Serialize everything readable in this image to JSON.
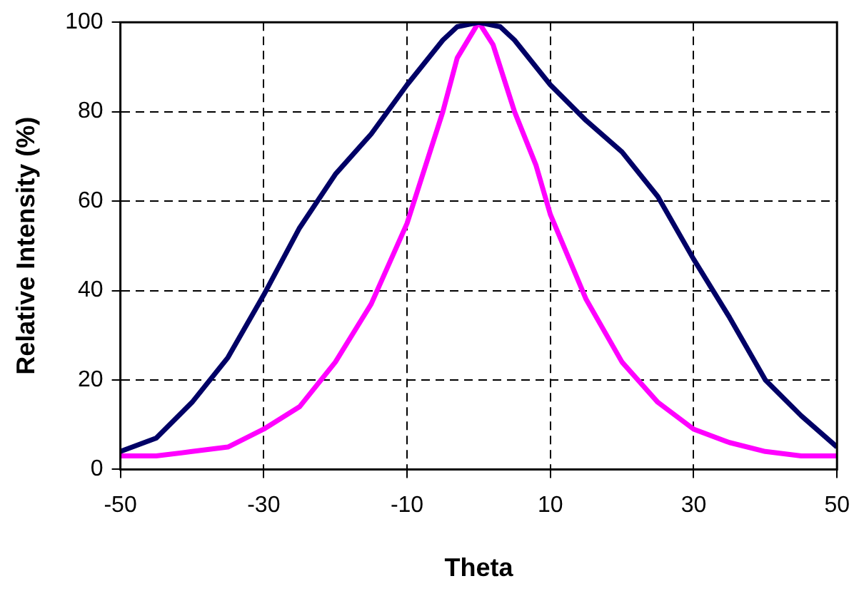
{
  "chart_data": {
    "type": "line",
    "xlabel": "Theta",
    "ylabel": "Relative Intensity (%)",
    "xlim": [
      -50,
      50
    ],
    "xticks": [
      -50,
      -30,
      -10,
      10,
      30,
      50
    ],
    "ylim": [
      0,
      100
    ],
    "yticks": [
      0,
      20,
      40,
      60,
      80,
      100
    ],
    "grid": true,
    "legend": false,
    "marker": "none",
    "line_style": "solid",
    "series": [
      {
        "color": "#000066",
        "x": [
          -50,
          -45,
          -40,
          -35,
          -30,
          -25,
          -20,
          -15,
          -10,
          -5,
          -3,
          0,
          3,
          5,
          10,
          15,
          20,
          25,
          30,
          35,
          40,
          45,
          50
        ],
        "values": [
          4,
          7,
          15,
          25,
          39,
          54,
          66,
          75,
          86,
          96,
          99,
          100,
          99,
          96,
          86,
          78,
          71,
          61,
          47,
          34,
          20,
          12,
          5
        ]
      },
      {
        "color": "#ff00ff",
        "x": [
          -50,
          -45,
          -40,
          -35,
          -30,
          -25,
          -20,
          -15,
          -10,
          -7,
          -5,
          -3,
          0,
          2,
          5,
          8,
          10,
          15,
          20,
          25,
          30,
          35,
          40,
          45,
          50
        ],
        "values": [
          3,
          3,
          4,
          5,
          9,
          14,
          24,
          37,
          55,
          70,
          80,
          92,
          100,
          95,
          80,
          68,
          57,
          38,
          24,
          15,
          9,
          6,
          4,
          3,
          3
        ]
      }
    ]
  }
}
